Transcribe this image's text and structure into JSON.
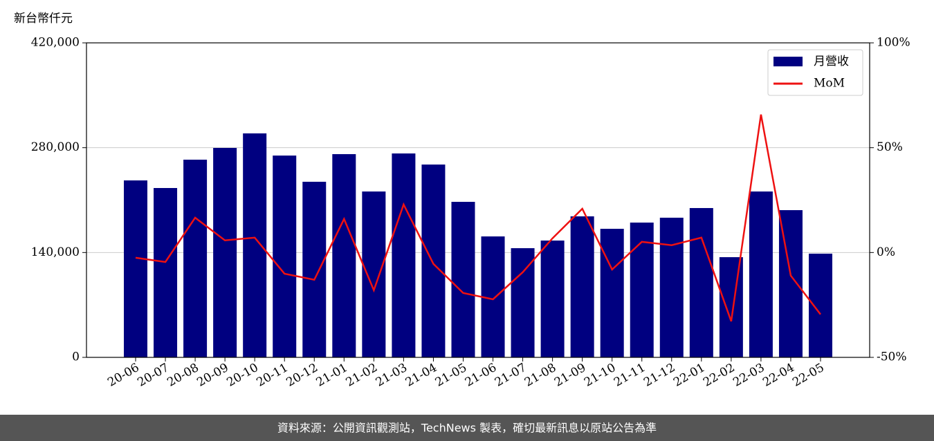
{
  "chart_data": {
    "type": "bar-line",
    "y_label": "新台幣仟元",
    "source": "資料來源：公開資訊觀測站，TechNews 製表，確切最新訊息以原站公告為準",
    "categories": [
      "20-06",
      "20-07",
      "20-08",
      "20-09",
      "20-10",
      "20-11",
      "20-12",
      "21-01",
      "21-02",
      "21-03",
      "21-04",
      "21-05",
      "21-06",
      "21-07",
      "21-08",
      "21-09",
      "21-10",
      "21-11",
      "21-12",
      "22-01",
      "22-02",
      "22-03",
      "22-04",
      "22-05"
    ],
    "series": [
      {
        "name": "月營收",
        "type": "bar",
        "color": "#000080",
        "values": [
          236300,
          226150,
          264000,
          279700,
          299100,
          269500,
          234500,
          271400,
          221500,
          272300,
          257500,
          207700,
          161500,
          145800,
          156000,
          188300,
          171700,
          180000,
          186500,
          199400,
          133800,
          221500,
          196600,
          138500
        ]
      },
      {
        "name": "MoM",
        "type": "line",
        "axis": "y2",
        "color": "#ee1111",
        "values": [
          -2.5,
          -4.5,
          16.6,
          5.8,
          7.1,
          -10.1,
          -13.0,
          16.0,
          -18.0,
          22.9,
          -5.4,
          -19.3,
          -22.3,
          -9.4,
          6.8,
          20.9,
          -8.1,
          5.1,
          3.5,
          7.1,
          -32.8,
          65.8,
          -11.0,
          -29.5
        ]
      }
    ],
    "ylim": [
      0,
      420000
    ],
    "yticks": [
      0,
      {
        "value": 140000,
        "label": "140,000"
      },
      {
        "value": 280000,
        "label": "280,000"
      },
      {
        "value": 420000,
        "label": "420,000"
      }
    ],
    "y2lim": [
      -50,
      100
    ],
    "y2ticks": [
      {
        "value": -50,
        "label": "-50%"
      },
      {
        "value": 0,
        "label": "0%"
      },
      {
        "value": 50,
        "label": "50%"
      },
      {
        "value": 100,
        "label": "100%"
      }
    ],
    "grid": true,
    "legend": "upper right"
  }
}
